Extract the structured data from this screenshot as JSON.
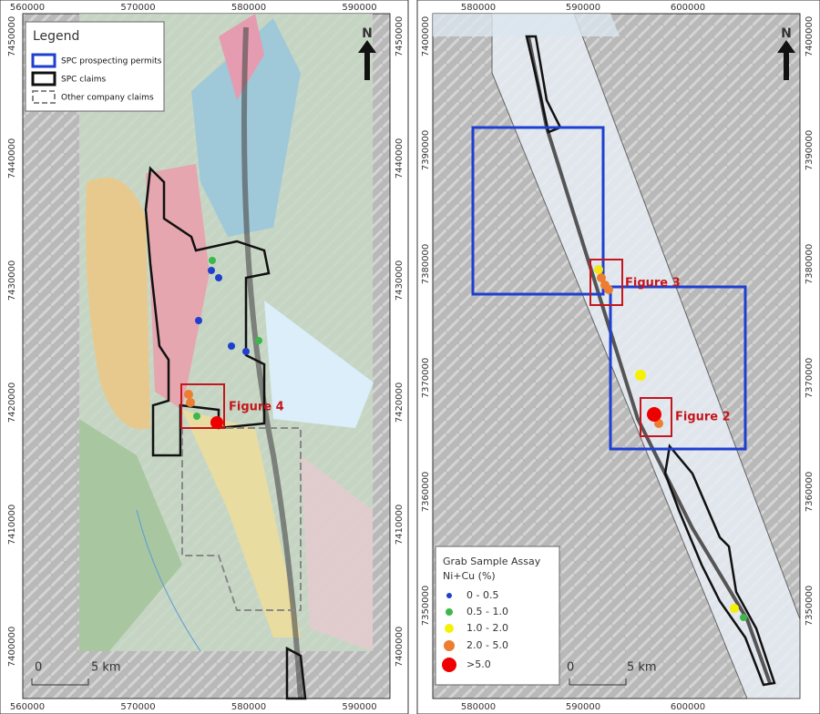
{
  "left_map": {
    "x_labels": [
      "560000",
      "570000",
      "580000",
      "590000"
    ],
    "y_labels": [
      "7450000",
      "7440000",
      "7430000",
      "7420000",
      "7410000",
      "7400000"
    ],
    "legend": {
      "title": "Legend",
      "items": [
        "SPC prospecting permits",
        "SPC claims",
        "Other company claims"
      ]
    },
    "north": "N",
    "scale": [
      "0",
      "5 km"
    ],
    "figure_label": "Figure 4"
  },
  "right_map": {
    "x_labels": [
      "580000",
      "590000",
      "600000"
    ],
    "y_labels": [
      "7400000",
      "7390000",
      "7380000",
      "7370000",
      "7360000",
      "7350000"
    ],
    "legend": {
      "title": "Grab Sample Assay",
      "subtitle": "Ni+Cu (%)",
      "items": [
        "0 - 0.5",
        "0.5 - 1.0",
        "1.0 - 2.0",
        "2.0 - 5.0",
        ">5.0"
      ]
    },
    "north": "N",
    "scale": [
      "0",
      "5 km"
    ],
    "figure_labels": [
      "Figure 3",
      "Figure 2"
    ]
  }
}
